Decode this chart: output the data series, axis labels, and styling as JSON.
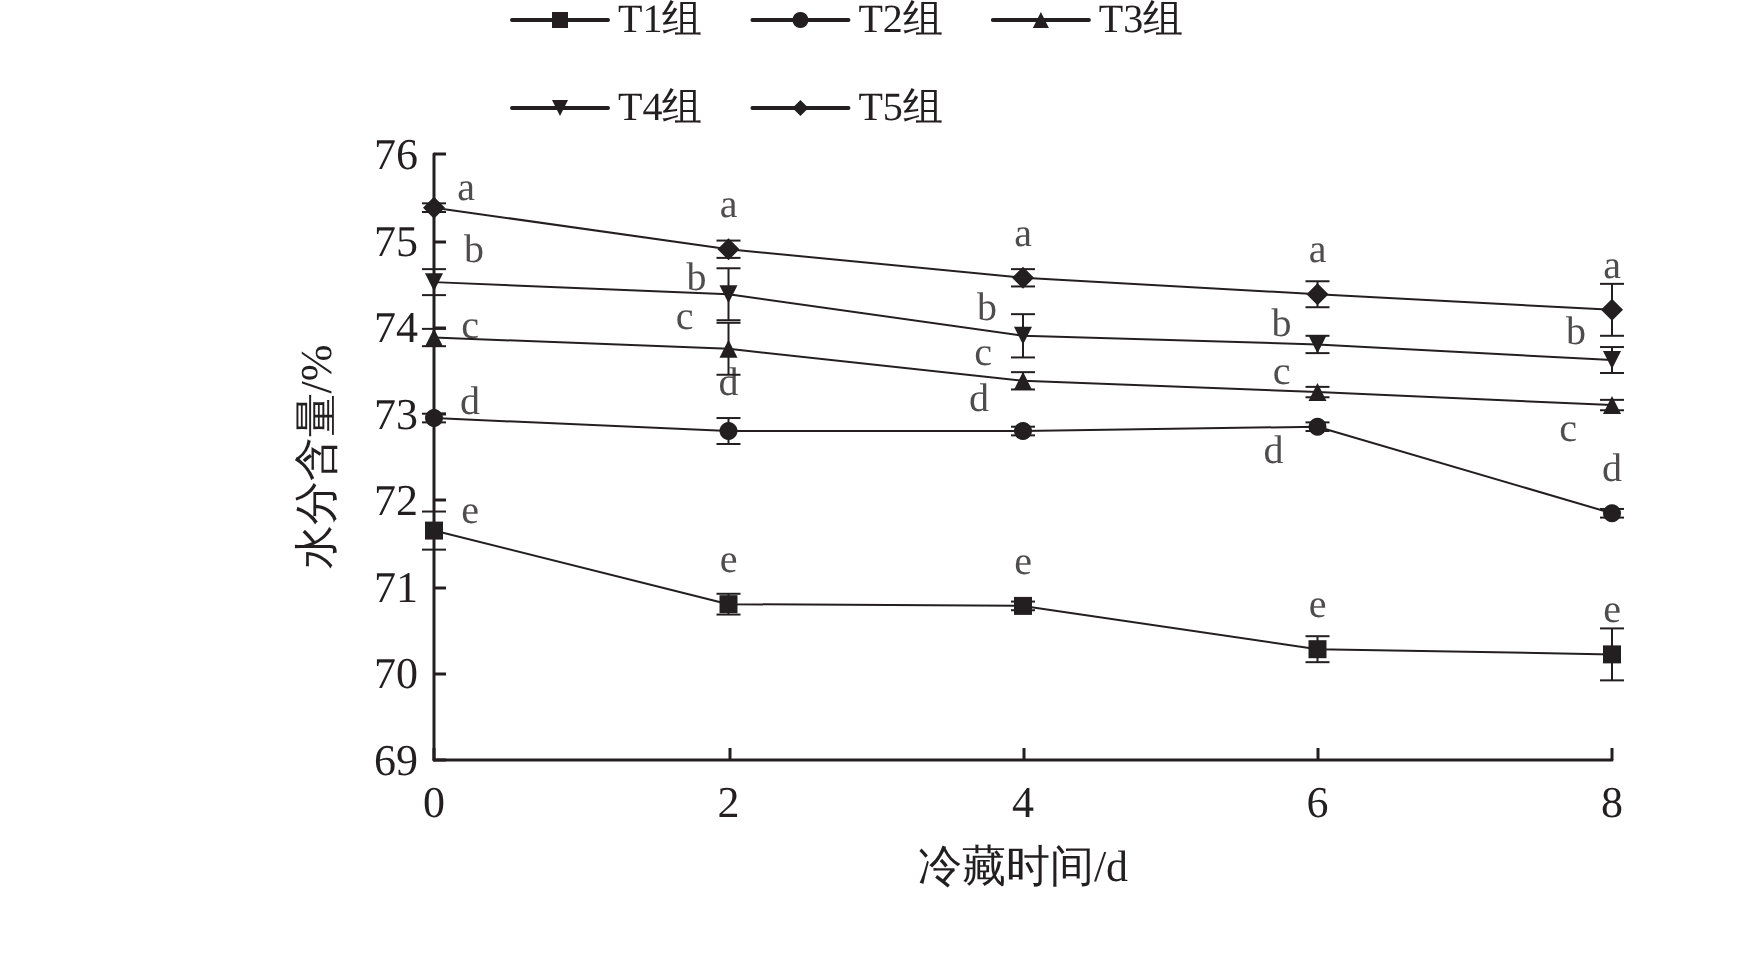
{
  "chart_data": {
    "type": "line",
    "xlabel": "冷藏时间/d",
    "ylabel": "水分含量/%",
    "x": [
      0,
      2,
      4,
      6,
      8
    ],
    "xlim": [
      0,
      8
    ],
    "xticks": [
      0,
      2,
      4,
      6,
      8
    ],
    "ylim": [
      69,
      76
    ],
    "yticks": [
      69,
      70,
      71,
      72,
      73,
      74,
      75,
      76
    ],
    "grid": false,
    "legend": "top",
    "line_style": "solid",
    "series": [
      {
        "name": "T1组",
        "color": "#231f20",
        "marker": "square",
        "values": [
          71.65,
          70.8,
          70.78,
          70.28,
          70.22
        ],
        "errors": [
          0.22,
          0.12,
          0.05,
          0.15,
          0.3
        ]
      },
      {
        "name": "T2组",
        "color": "#231f20",
        "marker": "circle",
        "values": [
          72.95,
          72.8,
          72.8,
          72.85,
          71.85
        ],
        "errors": [
          0.05,
          0.15,
          0.05,
          0.05,
          0.05
        ]
      },
      {
        "name": "T3组",
        "color": "#231f20",
        "marker": "triangle",
        "values": [
          73.88,
          73.75,
          73.38,
          73.25,
          73.1
        ],
        "errors": [
          0.1,
          0.3,
          0.1,
          0.06,
          0.06
        ]
      },
      {
        "name": "T4组",
        "color": "#231f20",
        "marker": "triangle-down",
        "values": [
          74.52,
          74.38,
          73.9,
          73.8,
          73.62
        ],
        "errors": [
          0.15,
          0.3,
          0.25,
          0.1,
          0.15
        ]
      },
      {
        "name": "T5组",
        "color": "#231f20",
        "marker": "diamond",
        "values": [
          75.38,
          74.9,
          74.57,
          74.38,
          74.2
        ],
        "errors": [
          0.05,
          0.1,
          0.1,
          0.15,
          0.3
        ]
      }
    ],
    "annotations": [
      "a",
      "a",
      "a",
      "a",
      "a",
      "b",
      "b",
      "b",
      "b",
      "b",
      "c",
      "c",
      "c",
      "c",
      "c",
      "d",
      "d",
      "d",
      "d",
      "d",
      "e",
      "e",
      "e",
      "e",
      "e"
    ]
  }
}
